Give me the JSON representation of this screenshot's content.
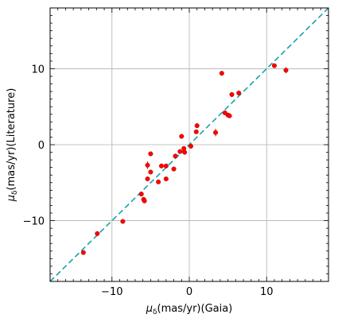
{
  "chart_data": {
    "type": "scatter",
    "title": "",
    "xlabel_prefix": "μ",
    "xlabel_sub": "δ",
    "xlabel_suffix": "(mas/yr)(Gaia)",
    "ylabel_prefix": "μ",
    "ylabel_sub": "δ",
    "ylabel_suffix": "(mas/yr)(Literature)",
    "xlim": [
      -18,
      18
    ],
    "ylim": [
      -18,
      18
    ],
    "xticks": [
      -10,
      0,
      10
    ],
    "yticks": [
      -10,
      0,
      10
    ],
    "grid": true,
    "reference_line": {
      "style": "dashed",
      "color": "#17a2a6",
      "slope": 1,
      "intercept": 0
    },
    "series": [
      {
        "marker_color": "#ff0000",
        "points": [
          {
            "x": -13.7,
            "y": -14.2,
            "yerr": 0.2
          },
          {
            "x": -11.9,
            "y": -11.7,
            "yerr": 0.2
          },
          {
            "x": -8.6,
            "y": -10.1,
            "yerr": 0.2
          },
          {
            "x": -6.2,
            "y": -6.5,
            "yerr": 0.2
          },
          {
            "x": -5.9,
            "y": -7.2,
            "yerr": 0.3
          },
          {
            "x": -5.8,
            "y": -7.4,
            "yerr": 0.2
          },
          {
            "x": -5.4,
            "y": -4.5,
            "yerr": 0.2
          },
          {
            "x": -5.4,
            "y": -2.7,
            "yerr": 0.5
          },
          {
            "x": -5.0,
            "y": -3.6,
            "yerr": 0.2
          },
          {
            "x": -5.0,
            "y": -1.2,
            "yerr": 0.2
          },
          {
            "x": -4.0,
            "y": -4.9,
            "yerr": 0.2
          },
          {
            "x": -3.6,
            "y": -2.8,
            "yerr": 0.3
          },
          {
            "x": -3.0,
            "y": -2.8,
            "yerr": 0.2
          },
          {
            "x": -3.0,
            "y": -4.5,
            "yerr": 0.2
          },
          {
            "x": -2.0,
            "y": -3.2,
            "yerr": 0.2
          },
          {
            "x": -1.8,
            "y": -1.5,
            "yerr": 0.2
          },
          {
            "x": -1.2,
            "y": -0.9,
            "yerr": 0.2
          },
          {
            "x": -1.0,
            "y": 1.1,
            "yerr": 0.3
          },
          {
            "x": -0.7,
            "y": -0.5,
            "yerr": 0.3
          },
          {
            "x": -0.6,
            "y": -1.0,
            "yerr": 0.3
          },
          {
            "x": 0.2,
            "y": -0.2,
            "yerr": 0.2
          },
          {
            "x": 0.9,
            "y": 1.7,
            "yerr": 0.2
          },
          {
            "x": 1.0,
            "y": 2.5,
            "yerr": 0.3
          },
          {
            "x": 3.4,
            "y": 1.6,
            "yerr": 0.5
          },
          {
            "x": 4.2,
            "y": 9.4,
            "yerr": 0.2
          },
          {
            "x": 4.6,
            "y": 4.2,
            "yerr": 0.2
          },
          {
            "x": 5.0,
            "y": 3.9,
            "yerr": 0.2
          },
          {
            "x": 5.2,
            "y": 3.8,
            "yerr": 0.2
          },
          {
            "x": 5.5,
            "y": 6.6,
            "yerr": 0.3
          },
          {
            "x": 6.4,
            "y": 6.8,
            "yerr": 0.2
          },
          {
            "x": 11.0,
            "y": 10.4,
            "yerr": 0.2
          },
          {
            "x": 12.5,
            "y": 9.8,
            "yerr": 0.4
          }
        ]
      }
    ]
  }
}
